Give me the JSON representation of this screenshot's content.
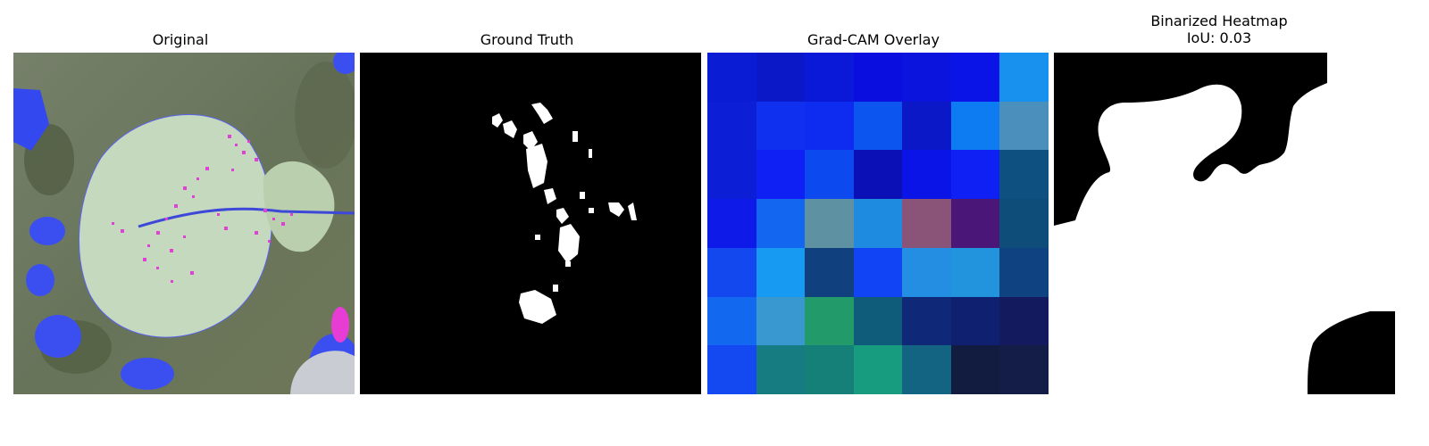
{
  "panels": [
    {
      "title": "Original"
    },
    {
      "title": "Ground Truth"
    },
    {
      "title": "Grad-CAM Overlay"
    },
    {
      "title": "Binarized Heatmap",
      "subtitle": "IoU: 0.03"
    }
  ],
  "gradcam": {
    "grid": [
      [
        "#0b1dd4",
        "#0a18c8",
        "#0a18d8",
        "#0a0fe0",
        "#0a14dc",
        "#0a14e6",
        "#1890ee"
      ],
      [
        "#0c1ed6",
        "#1030f0",
        "#0e2cf0",
        "#0d55ef",
        "#0a18c8",
        "#0d7cf2",
        "#4b8fbc"
      ],
      [
        "#0c1ed6",
        "#0e20f4",
        "#0c4af0",
        "#0b0fb6",
        "#0a14e6",
        "#0e20f4",
        "#0e5080"
      ],
      [
        "#0e1ae8",
        "#1266f0",
        "#5e92a2",
        "#1e8ae0",
        "#8a5478",
        "#4a1678",
        "#0e4c7a"
      ],
      [
        "#1248ee",
        "#169af2",
        "#10407e",
        "#1044f4",
        "#248ee2",
        "#2294de",
        "#0f4280"
      ],
      [
        "#1268ef",
        "#3a98d0",
        "#229a6a",
        "#0e5c7a",
        "#0f2878",
        "#102070",
        "#141a5e"
      ],
      [
        "#1448f0",
        "#167c82",
        "#148078",
        "#179c80",
        "#126482",
        "#121c40",
        "#141c48"
      ]
    ]
  }
}
